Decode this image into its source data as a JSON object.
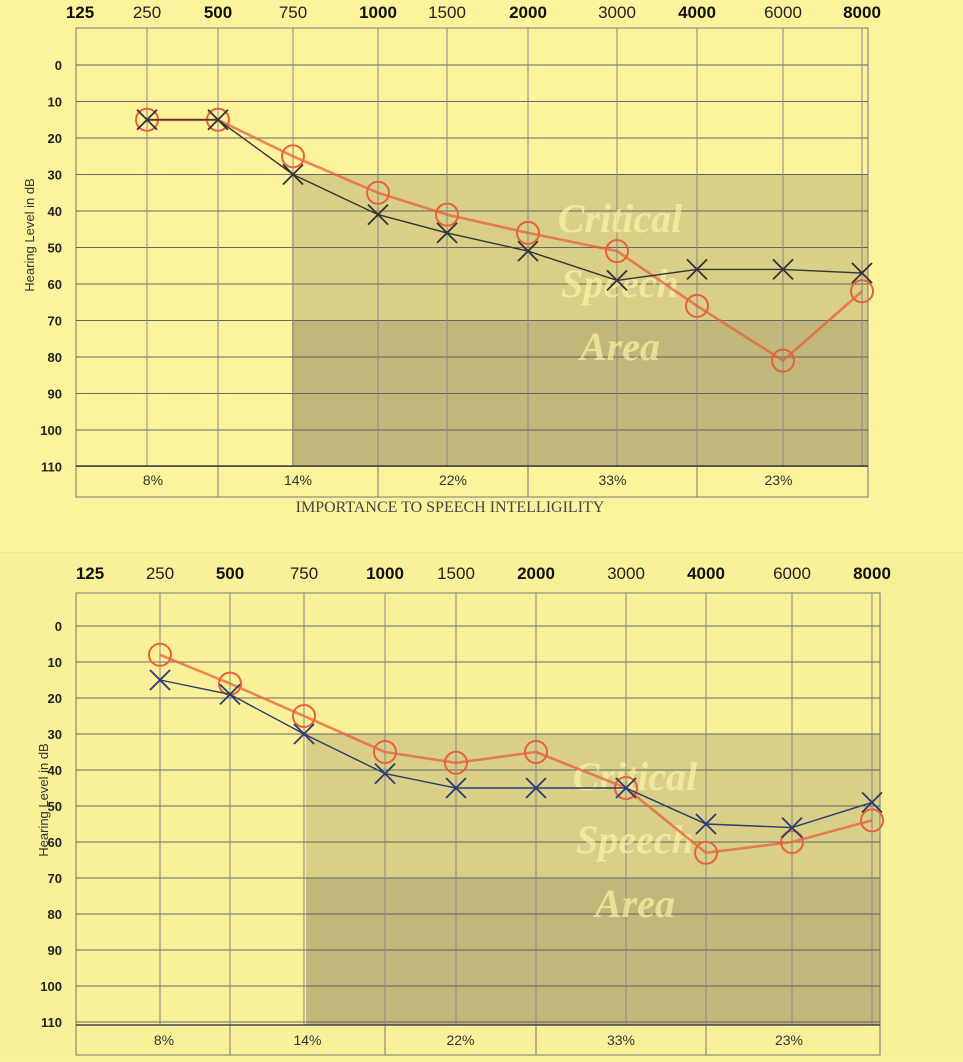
{
  "chart_data": [
    {
      "type": "line",
      "title": "",
      "xlabel": "IMPORTANCE TO SPEECH INTELLIGILITY",
      "ylabel": "Hearing Level in dB",
      "frequencies": [
        "125",
        "250",
        "500",
        "750",
        "1000",
        "1500",
        "2000",
        "3000",
        "4000",
        "6000",
        "8000"
      ],
      "bold_frequencies": [
        "125",
        "500",
        "1000",
        "2000",
        "4000",
        "8000"
      ],
      "y_ticks": [
        "0",
        "10",
        "20",
        "30",
        "40",
        "50",
        "60",
        "70",
        "80",
        "90",
        "100",
        "110"
      ],
      "ylim": [
        -10,
        110
      ],
      "importance_percentages": [
        "8%",
        "14%",
        "22%",
        "33%",
        "23%"
      ],
      "shaded_region_text": [
        "Critical",
        "Speech",
        "Area"
      ],
      "series": [
        {
          "marker": "circle",
          "color": "#e8603c",
          "x": [
            "250",
            "500",
            "750",
            "1000",
            "1500",
            "2000",
            "3000",
            "4000",
            "6000",
            "8000"
          ],
          "y": [
            15,
            15,
            25,
            35,
            41,
            46,
            51,
            66,
            81,
            62
          ]
        },
        {
          "marker": "cross",
          "color": "#333333",
          "x": [
            "250",
            "500",
            "750",
            "1000",
            "1500",
            "2000",
            "3000",
            "4000",
            "6000",
            "8000"
          ],
          "y": [
            15,
            15,
            30,
            41,
            46,
            51,
            59,
            56,
            56,
            57
          ]
        }
      ]
    },
    {
      "type": "line",
      "title": "",
      "xlabel": "",
      "ylabel": "Hearing Level in dB",
      "frequencies": [
        "125",
        "250",
        "500",
        "750",
        "1000",
        "1500",
        "2000",
        "3000",
        "4000",
        "6000",
        "8000"
      ],
      "bold_frequencies": [
        "125",
        "500",
        "1000",
        "2000",
        "4000",
        "8000"
      ],
      "y_ticks": [
        "0",
        "10",
        "20",
        "30",
        "40",
        "50",
        "60",
        "70",
        "80",
        "90",
        "100",
        "110"
      ],
      "ylim": [
        -10,
        110
      ],
      "importance_percentages": [
        "8%",
        "14%",
        "22%",
        "33%",
        "23%"
      ],
      "shaded_region_text": [
        "Critical",
        "Speech",
        "Area"
      ],
      "series": [
        {
          "marker": "circle",
          "color": "#e8603c",
          "x": [
            "250",
            "500",
            "750",
            "1000",
            "1500",
            "2000",
            "3000",
            "4000",
            "6000",
            "8000"
          ],
          "y": [
            8,
            16,
            25,
            35,
            38,
            35,
            45,
            63,
            60,
            54
          ]
        },
        {
          "marker": "cross",
          "color": "#2a3b6e",
          "x": [
            "250",
            "500",
            "750",
            "1000",
            "1500",
            "2000",
            "3000",
            "4000",
            "6000",
            "8000"
          ],
          "y": [
            15,
            19,
            30,
            41,
            45,
            45,
            45,
            55,
            56,
            49
          ]
        }
      ]
    }
  ]
}
